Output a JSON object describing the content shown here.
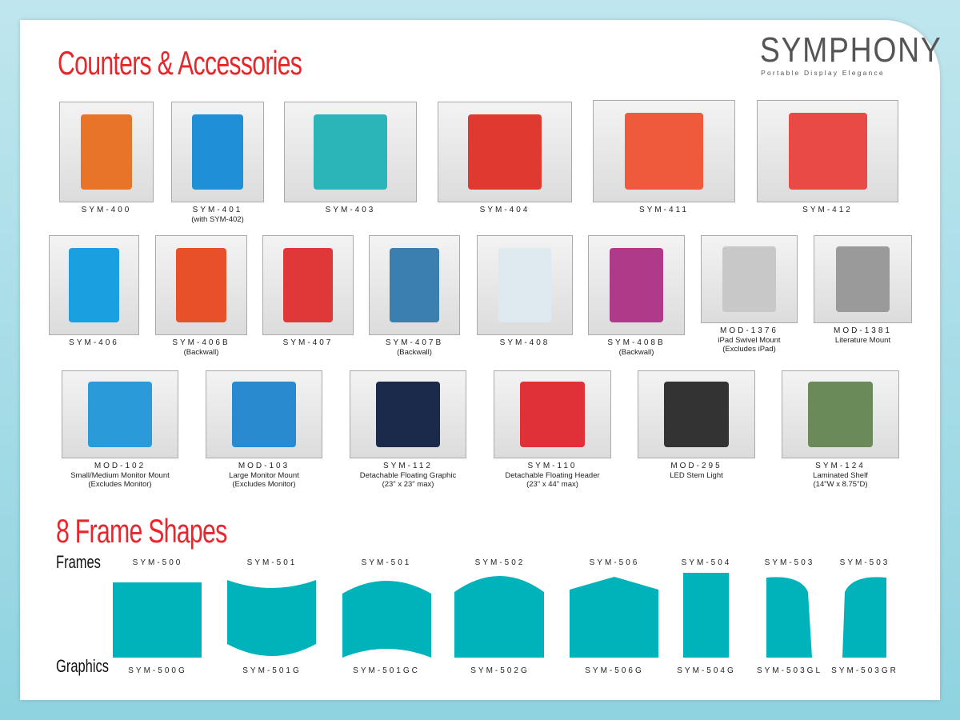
{
  "title": "Counters & Accessories",
  "logo": {
    "name": "SYMPHONY",
    "tagline": "Portable Display Elegance"
  },
  "products": [
    {
      "code": "SYM-400",
      "sub": [],
      "color": "#e8742a"
    },
    {
      "code": "SYM-401",
      "sub": [
        "(with SYM-402)"
      ],
      "color": "#1f8fd8"
    },
    {
      "code": "SYM-403",
      "sub": [],
      "color": "#2bb5b8"
    },
    {
      "code": "SYM-404",
      "sub": [],
      "color": "#e03a30"
    },
    {
      "code": "SYM-411",
      "sub": [],
      "color": "#ef5a3a"
    },
    {
      "code": "SYM-412",
      "sub": [],
      "color": "#ea4a45"
    },
    {
      "code": "SYM-406",
      "sub": [],
      "color": "#1aa0e0"
    },
    {
      "code": "SYM-406B",
      "sub": [
        "(Backwall)"
      ],
      "color": "#e8502a"
    },
    {
      "code": "SYM-407",
      "sub": [],
      "color": "#e03838"
    },
    {
      "code": "SYM-407B",
      "sub": [
        "(Backwall)"
      ],
      "color": "#3a7fb0"
    },
    {
      "code": "SYM-408",
      "sub": [],
      "color": "#dfe9f0"
    },
    {
      "code": "SYM-408B",
      "sub": [
        "(Backwall)"
      ],
      "color": "#b03a8a"
    },
    {
      "code": "MOD-1376",
      "sub": [
        "iPad Swivel Mount",
        "(Excludes iPad)"
      ],
      "color": "#c8c8c8"
    },
    {
      "code": "MOD-1381",
      "sub": [
        "Literature Mount"
      ],
      "color": "#9a9a9a"
    },
    {
      "code": "MOD-102",
      "sub": [
        "Small/Medium Monitor Mount",
        "(Excludes Monitor)"
      ],
      "color": "#2a9ad8"
    },
    {
      "code": "MOD-103",
      "sub": [
        "Large Monitor Mount",
        "(Excludes Monitor)"
      ],
      "color": "#2a8ad0"
    },
    {
      "code": "SYM-112",
      "sub": [
        "Detachable Floating Graphic",
        "(23\" x 23\" max)"
      ],
      "color": "#1b2a4a"
    },
    {
      "code": "SYM-110",
      "sub": [
        "Detachable Floating Header",
        "(23\" x 44\" max)"
      ],
      "color": "#e03038"
    },
    {
      "code": "MOD-295",
      "sub": [
        "LED Stem Light"
      ],
      "color": "#333333"
    },
    {
      "code": "SYM-124",
      "sub": [
        "Laminated Shelf",
        "(14\"W x 8.75\"D)"
      ],
      "color": "#6a8a5a"
    }
  ],
  "frames_title": "8 Frame Shapes",
  "frames_label": "Frames",
  "graphics_label": "Graphics",
  "shape_color": "#00b2ba",
  "shapes": [
    {
      "frame": "SYM-500",
      "graphic": "SYM-500G"
    },
    {
      "frame": "SYM-501",
      "graphic": "SYM-501G"
    },
    {
      "frame": "SYM-501",
      "graphic": "SYM-501GC"
    },
    {
      "frame": "SYM-502",
      "graphic": "SYM-502G"
    },
    {
      "frame": "SYM-506",
      "graphic": "SYM-506G"
    },
    {
      "frame": "SYM-504",
      "graphic": "SYM-504G"
    },
    {
      "frame": "SYM-503",
      "graphic": "SYM-503GL"
    },
    {
      "frame": "SYM-503",
      "graphic": "SYM-503GR"
    }
  ]
}
